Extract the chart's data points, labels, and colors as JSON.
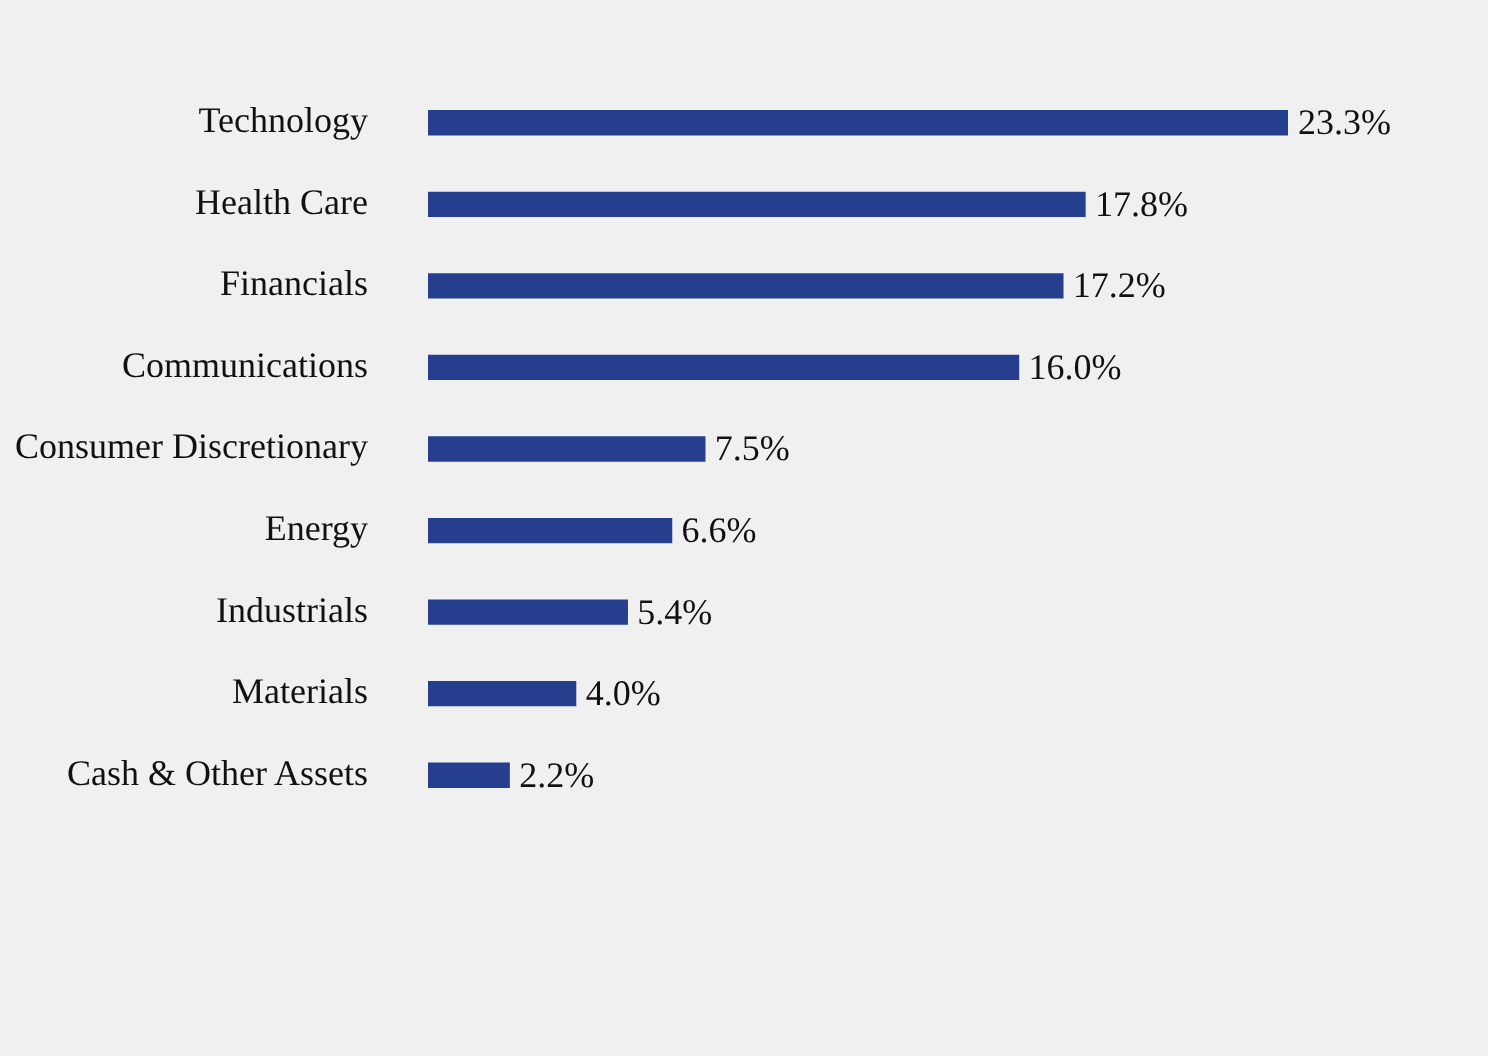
{
  "chart_data": {
    "type": "bar",
    "orientation": "horizontal",
    "categories": [
      "Technology",
      "Health Care",
      "Financials",
      "Communications",
      "Consumer Discretionary",
      "Energy",
      "Industrials",
      "Materials",
      "Cash & Other Assets"
    ],
    "values": [
      23.3,
      17.8,
      17.2,
      16.0,
      7.5,
      6.6,
      5.4,
      4.0,
      2.2
    ],
    "value_labels": [
      "23.3%",
      "17.8%",
      "17.2%",
      "16.0%",
      "7.5%",
      "6.6%",
      "5.4%",
      "4.0%",
      "2.2%"
    ],
    "color": "#253f8e",
    "legend": false
  }
}
